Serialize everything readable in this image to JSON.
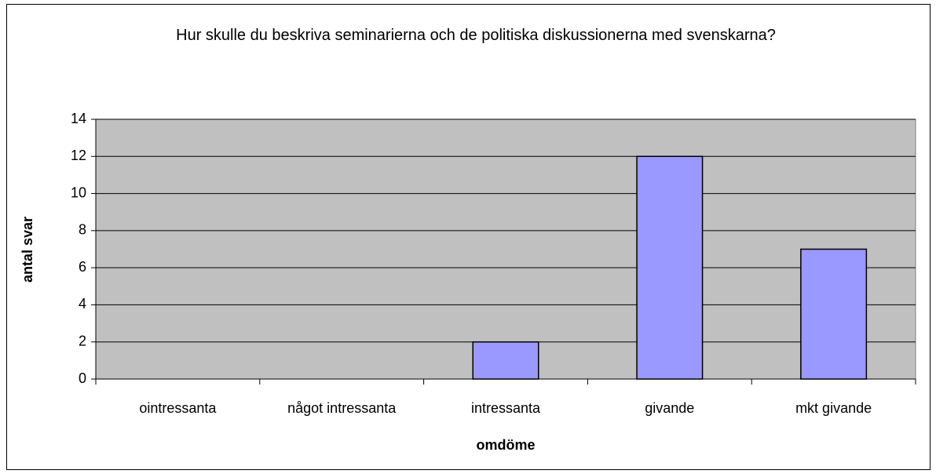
{
  "chart_data": {
    "type": "bar",
    "title": "Hur skulle du beskriva seminarierna och de politiska diskussionerna med svenskarna?",
    "x_label": "omdöme",
    "y_label": "antal svar",
    "categories": [
      "ointressanta",
      "något intressanta",
      "intressanta",
      "givande",
      "mkt givande"
    ],
    "values": [
      0,
      0,
      2,
      12,
      7
    ],
    "color": "#9999ff",
    "ylim": [
      0,
      14
    ],
    "yticks": [
      0,
      2,
      4,
      6,
      8,
      10,
      12,
      14
    ],
    "grid": true
  }
}
